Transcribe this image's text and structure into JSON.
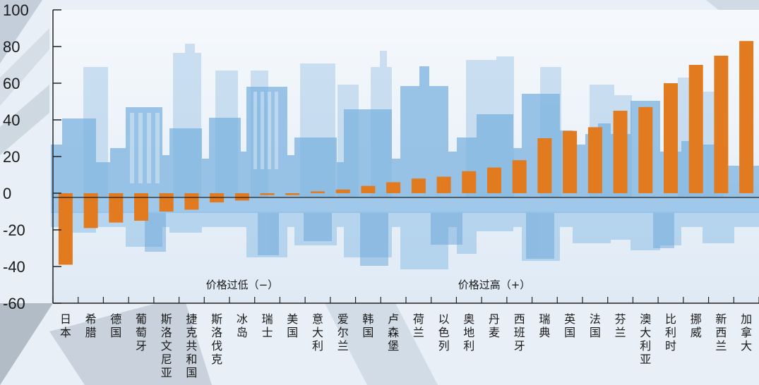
{
  "chart_data": {
    "type": "bar",
    "ylim": [
      -60,
      100
    ],
    "yticks": [
      100,
      80,
      60,
      40,
      20,
      0,
      -20,
      -40,
      -60
    ],
    "categories": [
      "日本",
      "希腊",
      "德国",
      "葡萄牙",
      "斯洛文尼亚",
      "捷克共和国",
      "斯洛伐克",
      "冰岛",
      "瑞士",
      "美国",
      "意大利",
      "爱尔兰",
      "韩国",
      "卢森堡",
      "荷兰",
      "以色列",
      "奥地利",
      "丹麦",
      "西班牙",
      "瑞典",
      "英国",
      "法国",
      "芬兰",
      "澳大利亚",
      "比利时",
      "挪威",
      "新西兰",
      "加拿大"
    ],
    "values": [
      -39,
      -19,
      -16,
      -15,
      -10,
      -9,
      -5,
      -4,
      -1,
      -1,
      1,
      2,
      4,
      6,
      8,
      9,
      12,
      14,
      18,
      30,
      34,
      36,
      45,
      47,
      60,
      70,
      75,
      83
    ],
    "bar_color": "#e27a1f",
    "annotations": [
      {
        "text": "价格过低（−）",
        "x_near": "冰岛",
        "y": -50
      },
      {
        "text": "价格过高（+）",
        "x_near": "丹麦",
        "y": -50
      }
    ],
    "grid": false
  }
}
